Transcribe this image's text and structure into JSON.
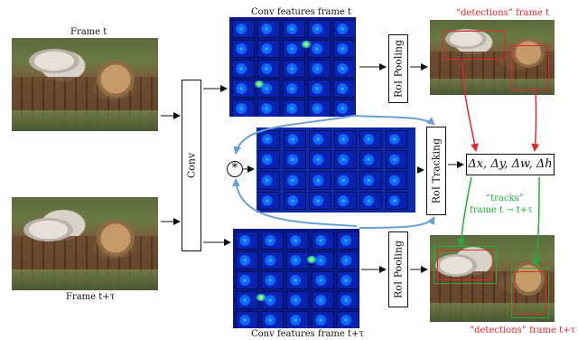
{
  "labels": {
    "frame_t": "Frame t",
    "frame_t_tau": "Frame t+τ",
    "conv_features_t": "Conv features frame t",
    "conv_features_t_tau": "Conv features frame t+τ",
    "conv": "Conv",
    "roi_pooling_top": "RoI Pooling",
    "roi_tracking": "RoI Tracking",
    "roi_pooling_bottom": "RoI Pooling",
    "correlation_symbol": "*",
    "detections_t": "“detections” frame t",
    "detections_t_tau": "“detections” frame t+τ",
    "tracks_line1": "“tracks”",
    "tracks_line2": "frame t → t+τ",
    "deltas": "Δx, Δy, Δw, Δh"
  },
  "colors": {
    "red": "#e5262a",
    "green": "#1fae3a",
    "blue_arrow": "#6aa1d4",
    "black": "#111111"
  },
  "icons": {
    "correlation": "circled-asterisk-icon"
  }
}
